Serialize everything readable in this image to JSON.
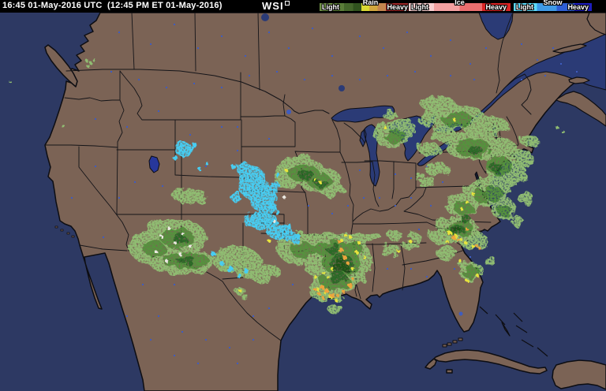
{
  "titlebar": {
    "timestamp": "16:45 01-May-2016 UTC  (12:45 PM ET 01-May-2016)",
    "logo": "WSI",
    "background": "#000000",
    "text_color": "#ffffff"
  },
  "legend": {
    "rain": {
      "name": "Rain",
      "light_label": "Light",
      "heavy_label": "Heavy",
      "gradient": "linear-gradient(90deg,#6f9148 0,#6f9148 13%,#5a7d39 13%,#5a7d39 24%,#44662b 24%,#44662b 33%,#30521e 33%,#30521e 41%,#d9d832 41%,#d9d832 49%,#d2a73e 49%,#d2a73e 57%,#c3854e 57%,#c3854e 65%,#9c2828 65%,#9c2828 88%,#e03ae0 88%,#e03ae0 100%)"
    },
    "ice": {
      "name": "Ice",
      "light_label": "Light",
      "heavy_label": "Heavy",
      "gradient": "linear-gradient(90deg,#f9cfcf 0,#f9cfcf 25%,#f3a0a0 25%,#f3a0a0 50%,#ea6e6e 50%,#ea6e6e 72%,#d92525 72%,#d92525 100%)"
    },
    "snow": {
      "name": "Snow",
      "light_label": "Light",
      "heavy_label": "Heavy",
      "gradient": "linear-gradient(90deg,#5ddbfa 0,#5ddbfa 30%,#3f9ae6 30%,#3f9ae6 55%,#2e5ed4 55%,#2e5ed4 78%,#1d1dbe 78%,#1d1dbe 100%)"
    }
  },
  "map": {
    "palette": {
      "land": "#7b6355",
      "ocean": "#2d3963",
      "lakes": "#2b3b76",
      "small_lakes": "#3f5cbf",
      "borders": "#141418",
      "rain_light": "#90bd72",
      "rain_moderate": "#55923e",
      "rain_heavy": "#2c6a26",
      "rain_intense": "#1d5418",
      "rain_yellow": "#e8e43c",
      "rain_orange": "#eda43c",
      "snow_cyan": "#46cdf2",
      "mixed_white": "#ece9e2"
    },
    "precip_systems": [
      {
        "region": "Colorado / southern Rockies",
        "type": "snow (cyan) with surrounding rain"
      },
      {
        "region": "New Mexico / Arizona",
        "type": "light-moderate rain"
      },
      {
        "region": "Oklahoma / Texas panhandle",
        "type": "rain with embedded heavier cells"
      },
      {
        "region": "Nebraska / Iowa / Kansas / Missouri",
        "type": "light-moderate rain"
      },
      {
        "region": "Michigan",
        "type": "light rain"
      },
      {
        "region": "Northeast US / New England coast",
        "type": "widespread light rain"
      },
      {
        "region": "Virginia / Carolinas",
        "type": "rain with heavy yellow-orange cells"
      },
      {
        "region": "Louisiana / Mississippi / Alabama gulf coast",
        "type": "heavy rain, orange cells"
      },
      {
        "region": "Texas upper gulf coast",
        "type": "heavy rain cells"
      }
    ]
  }
}
